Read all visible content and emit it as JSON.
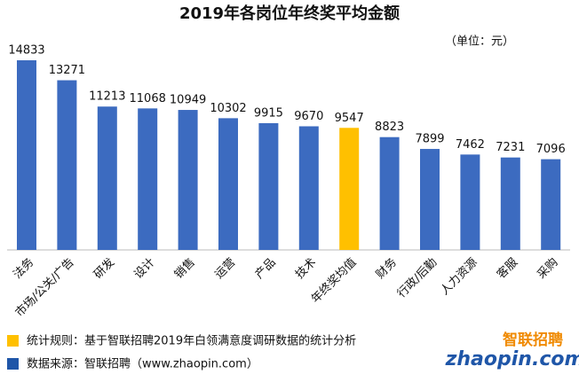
{
  "chart_data": {
    "type": "bar",
    "title": "2019年各岗位年终奖平均金额",
    "unit_note": "（单位：元）",
    "categories": [
      "法务",
      "市场/公关/广告",
      "研发",
      "设计",
      "销售",
      "运营",
      "产品",
      "技术",
      "年终奖均值",
      "财务",
      "行政/后勤",
      "人力资源",
      "客服",
      "采购"
    ],
    "values": [
      14833,
      13271,
      11213,
      11068,
      10949,
      10302,
      9915,
      9670,
      9547,
      8823,
      7899,
      7462,
      7231,
      7096
    ],
    "colors": [
      "#3c6bc0",
      "#3c6bc0",
      "#3c6bc0",
      "#3c6bc0",
      "#3c6bc0",
      "#3c6bc0",
      "#3c6bc0",
      "#3c6bc0",
      "#ffc000",
      "#3c6bc0",
      "#3c6bc0",
      "#3c6bc0",
      "#3c6bc0",
      "#3c6bc0"
    ],
    "ylim": [
      0,
      15000
    ],
    "legend": [
      {
        "color": "#ffc000",
        "text": "统计规则：基于智联招聘2019年白领满意度调研数据的统计分析"
      },
      {
        "color": "#1f56a8",
        "text": "数据来源：智联招聘（www.zhaopin.com）"
      }
    ],
    "logo": {
      "brand": "智联招聘",
      "site": "zhaopin.com"
    }
  }
}
